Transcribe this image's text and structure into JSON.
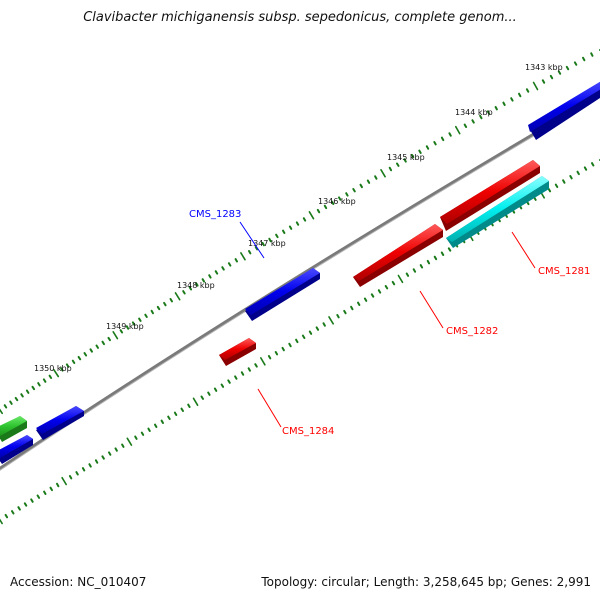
{
  "title": "Clavibacter michiganensis subsp. sepedonicus, complete genom...",
  "footer": {
    "accession": "Accession: NC_010407",
    "summary": "Topology: circular; Length: 3,258,645 bp; Genes: 2,991"
  },
  "ruler_labels": [
    "1343 kbp",
    "1344 kbp",
    "1345 kbp",
    "1346 kbp",
    "1347 kbp",
    "1348 kbp",
    "1349 kbp",
    "1350 kbp"
  ],
  "gene_labels": {
    "cms_1281": "CMS_1281",
    "cms_1282": "CMS_1282",
    "cms_1283": "CMS_1283",
    "cms_1284": "CMS_1284"
  },
  "colors": {
    "forward": "#0000ff",
    "reverse": "#ff0000",
    "cyan": "#00ffff",
    "green": "#33cc33",
    "backbone": "#808080",
    "ticks": "#1a7a1a"
  }
}
